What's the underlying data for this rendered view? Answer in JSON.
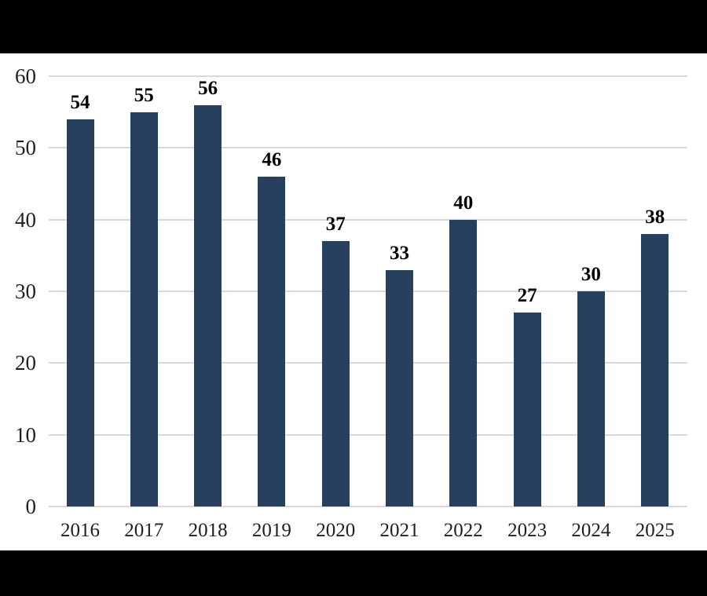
{
  "chart_data": {
    "type": "bar",
    "categories": [
      "2016",
      "2017",
      "2018",
      "2019",
      "2020",
      "2021",
      "2022",
      "2023",
      "2024",
      "2025"
    ],
    "values": [
      54,
      55,
      56,
      46,
      37,
      33,
      40,
      27,
      30,
      38
    ],
    "title": "",
    "xlabel": "",
    "ylabel": "",
    "ylim": [
      0,
      60
    ],
    "yticks": [
      0,
      10,
      20,
      30,
      40,
      50,
      60
    ],
    "grid": true,
    "legend": "none",
    "data_labels": true,
    "colors": {
      "bar_fill": "#26405E",
      "gridline": "#D9D9D9",
      "axis_text": "#1F1F1F",
      "data_label_text": "#000000",
      "letterbox_band": "#000000",
      "plot_background": "#FFFFFF"
    }
  }
}
